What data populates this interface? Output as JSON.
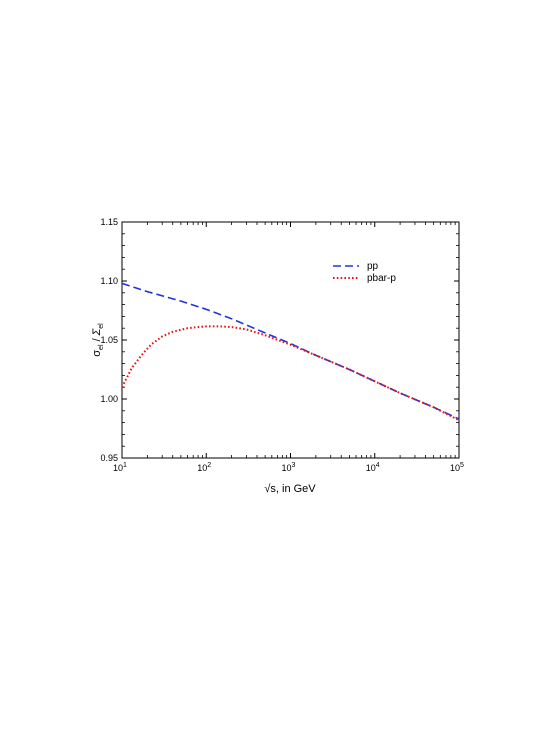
{
  "chart_data": {
    "type": "line",
    "xlabel": "√s, in GeV",
    "ylabel_main": "σ",
    "ylabel_main_sub": "el",
    "ylabel_sep": " / ",
    "ylabel_sym": "Σ",
    "ylabel_sym_sub": "el",
    "x_scale": "log",
    "xlim": [
      10,
      100000
    ],
    "ylim": [
      0.95,
      1.15
    ],
    "x_ticks": [
      {
        "base": "10",
        "exp": "1",
        "value": 10
      },
      {
        "base": "10",
        "exp": "2",
        "value": 100
      },
      {
        "base": "10",
        "exp": "3",
        "value": 1000
      },
      {
        "base": "10",
        "exp": "4",
        "value": 10000
      },
      {
        "base": "10",
        "exp": "5",
        "value": 100000
      }
    ],
    "y_ticks": [
      {
        "label": "0.95",
        "value": 0.95
      },
      {
        "label": "1.00",
        "value": 1.0
      },
      {
        "label": "1.05",
        "value": 1.05
      },
      {
        "label": "1.10",
        "value": 1.1
      },
      {
        "label": "1.15",
        "value": 1.15
      }
    ],
    "grid": false,
    "legend_position": "top-right",
    "series": [
      {
        "name": "pp",
        "color": "#2233dd",
        "style": "dashed",
        "x": [
          10,
          20,
          50,
          100,
          200,
          500,
          1000,
          2000,
          5000,
          10000,
          20000,
          50000,
          100000
        ],
        "y": [
          1.098,
          1.091,
          1.083,
          1.076,
          1.068,
          1.056,
          1.047,
          1.037,
          1.025,
          1.015,
          1.005,
          0.993,
          0.983
        ]
      },
      {
        "name": "pbar-p",
        "color": "#ee1111",
        "style": "dotted",
        "x": [
          10,
          13,
          17,
          22,
          30,
          40,
          60,
          80,
          100,
          150,
          200,
          300,
          500,
          1000,
          2000,
          5000,
          10000,
          20000,
          50000,
          100000
        ],
        "y": [
          1.01,
          1.026,
          1.037,
          1.046,
          1.053,
          1.057,
          1.06,
          1.061,
          1.0615,
          1.0615,
          1.061,
          1.059,
          1.054,
          1.046,
          1.037,
          1.025,
          1.015,
          1.005,
          0.993,
          0.982
        ]
      }
    ]
  }
}
